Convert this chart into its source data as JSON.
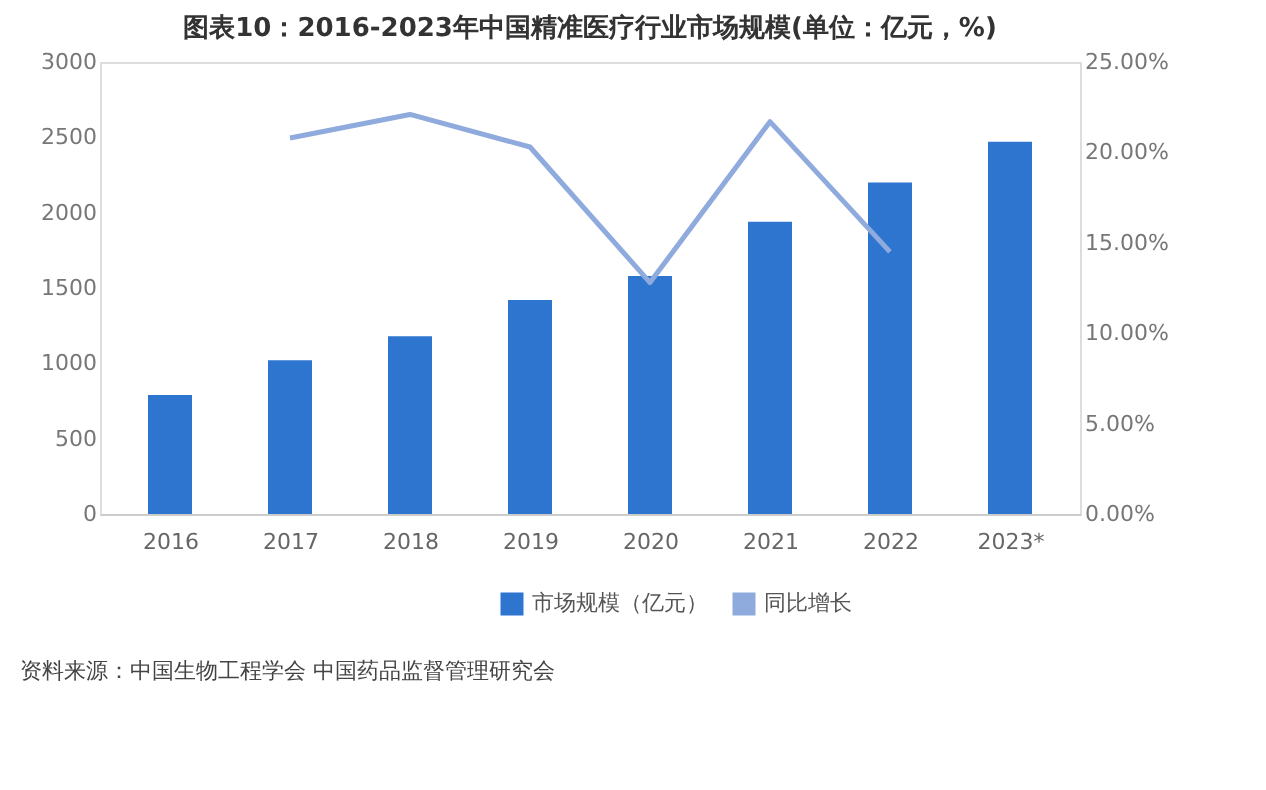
{
  "chart_data": {
    "type": "bar",
    "title": "图表10：2016-2023年中国精准医疗行业市场规模(单位：亿元，%)",
    "categories": [
      "2016",
      "2017",
      "2018",
      "2019",
      "2020",
      "2021",
      "2022",
      "2023*"
    ],
    "series": [
      {
        "name": "市场规模（亿元）",
        "color": "#2e75d0",
        "values": [
          790,
          1020,
          1180,
          1420,
          1580,
          1940,
          2200,
          2470
        ]
      },
      {
        "name": "同比增长",
        "type": "line",
        "axis": "y2",
        "color": "#8faadc",
        "values": [
          null,
          20.8,
          22.1,
          20.3,
          12.8,
          21.7,
          14.5,
          null
        ]
      }
    ],
    "ylim": [
      0,
      3000
    ],
    "yticks": [
      0,
      500,
      {
        "value": 1000,
        "label": "1000"
      },
      {
        "value": 1500,
        "label": "1500"
      },
      {
        "value": 2000,
        "label": "2000"
      },
      {
        "value": 2500,
        "label": "2500"
      },
      {
        "value": 3000,
        "label": "3000"
      }
    ],
    "y2lim": [
      0,
      25
    ],
    "y2ticks": [
      {
        "value": 0,
        "label": "0.00%"
      },
      {
        "value": 5,
        "label": "5.00%"
      },
      {
        "value": 10,
        "label": "10.00%"
      },
      {
        "value": 15,
        "label": "15.00%"
      },
      {
        "value": 20,
        "label": "20.00%"
      },
      {
        "value": 25,
        "label": "25.00%"
      }
    ],
    "legend": "bottom",
    "marker": "none",
    "annotations": [
      "资料来源：中国生物工程学会 中国药品监督管理研究会"
    ]
  }
}
